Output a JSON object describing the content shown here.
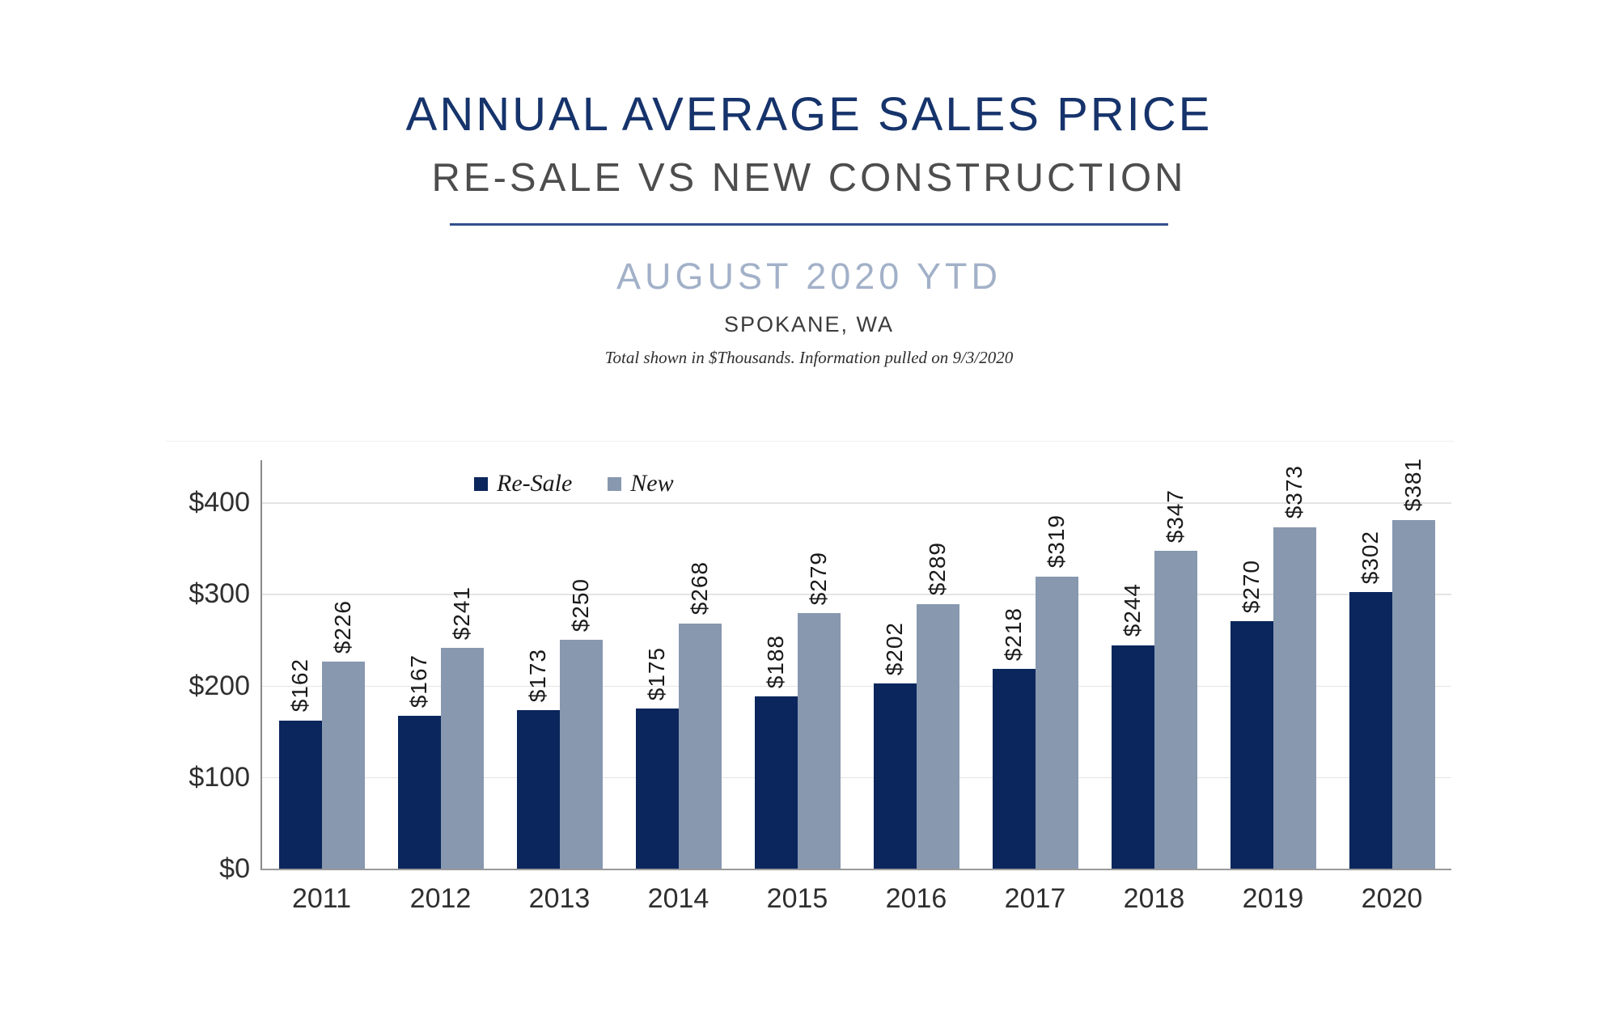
{
  "header": {
    "title": "ANNUAL AVERAGE SALES PRICE",
    "subtitle": "RE-SALE VS NEW CONSTRUCTION",
    "period": "AUGUST 2020 YTD",
    "location": "SPOKANE, WA",
    "note": "Total shown in $Thousands. Information pulled on 9/3/2020"
  },
  "colors": {
    "title_navy": "#16336b",
    "divider_navy": "#32508c",
    "period_blue_gray": "#a2b1c8",
    "resale_bar": "#0a265c",
    "new_bar": "#8798af",
    "gridline": "#e4e4e4",
    "axis_line": "#9a9a9a"
  },
  "chart_data": {
    "type": "bar",
    "categories": [
      "2011",
      "2012",
      "2013",
      "2014",
      "2015",
      "2016",
      "2017",
      "2018",
      "2019",
      "2020"
    ],
    "series": [
      {
        "name": "Re-Sale",
        "color": "#0a265c",
        "values": [
          162,
          167,
          173,
          175,
          188,
          202,
          218,
          244,
          270,
          302
        ]
      },
      {
        "name": "New",
        "color": "#8798af",
        "values": [
          226,
          241,
          250,
          268,
          279,
          289,
          319,
          347,
          373,
          381
        ]
      }
    ],
    "value_prefix": "$",
    "data_labels": "rotated-90-above-bars",
    "yticks": [
      {
        "label": "$0",
        "value": 0
      },
      {
        "label": "$100",
        "value": 100
      },
      {
        "label": "$200",
        "value": 200
      },
      {
        "label": "$300",
        "value": 300
      },
      {
        "label": "$400",
        "value": 400
      }
    ],
    "ylim": [
      0,
      400
    ],
    "grid": true,
    "legend_position": "inside-top-left"
  }
}
